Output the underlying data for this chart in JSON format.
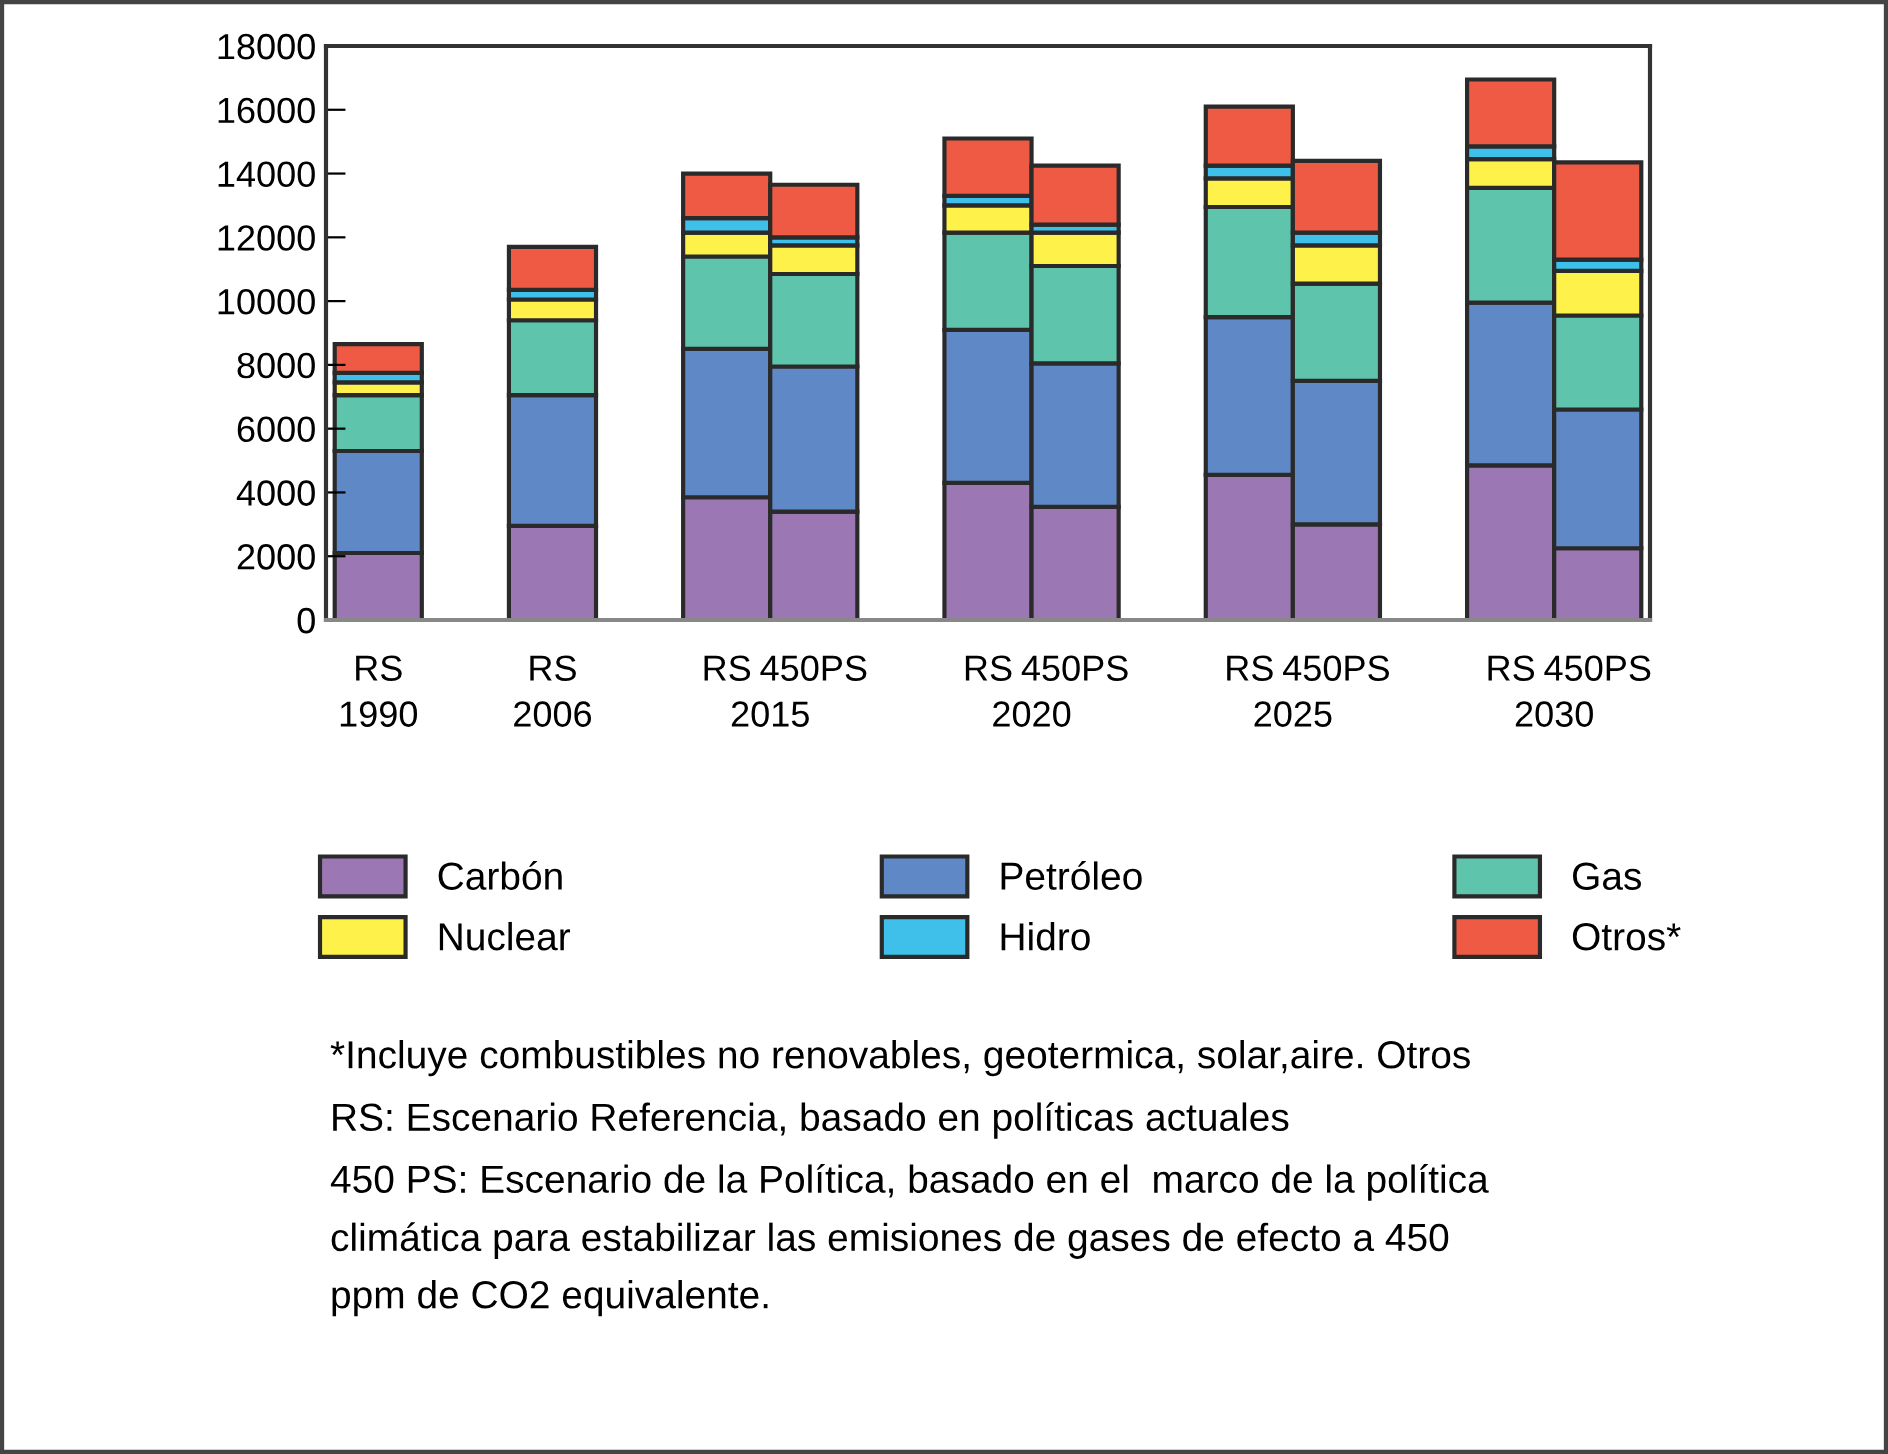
{
  "chart_data": {
    "type": "bar",
    "stacked": true,
    "categories": [
      "RS",
      "RS",
      "RS",
      "450PS",
      "RS",
      "450PS",
      "RS",
      "450PS",
      "RS",
      "450PS"
    ],
    "series": [
      {
        "name": "Carbón",
        "color": "#9b77b3",
        "values": [
          2100,
          2950,
          3850,
          3400,
          4300,
          3550,
          4550,
          3000,
          4850,
          2250
        ]
      },
      {
        "name": "Petróleo",
        "color": "#5f88c6",
        "values": [
          3200,
          4100,
          4650,
          4550,
          4800,
          4500,
          4950,
          4500,
          5100,
          4350
        ]
      },
      {
        "name": "Gas",
        "color": "#5ec4ab",
        "values": [
          1750,
          2350,
          2900,
          2900,
          3050,
          3050,
          3450,
          3050,
          3600,
          2950
        ]
      },
      {
        "name": "Nuclear",
        "color": "#fef14a",
        "values": [
          400,
          650,
          750,
          900,
          850,
          1050,
          900,
          1200,
          900,
          1400
        ]
      },
      {
        "name": "Hidro",
        "color": "#3ec0ea",
        "values": [
          300,
          300,
          450,
          250,
          300,
          250,
          400,
          400,
          400,
          350
        ]
      },
      {
        "name": "Otros*",
        "color": "#ef5a44",
        "values": [
          900,
          1350,
          1400,
          1650,
          1800,
          1850,
          1850,
          2250,
          2100,
          3050
        ]
      }
    ],
    "ylim": [
      0,
      18000
    ],
    "yticks": [
      0,
      2000,
      4000,
      6000,
      8000,
      10000,
      12000,
      14000,
      16000,
      18000
    ],
    "grid": false,
    "legend": "bottom",
    "annotations": [
      "1990",
      "2006",
      "2015",
      "2020",
      "2025",
      "2030",
      "*Incluye combustibles no renovables, geotermica, solar,aire. Otros",
      "RS: Escenario Referencia, basado en políticas actuales",
      "450 PS: Escenario de la Política, basado en el  marco de la política\nclimática para estabilizar las emisiones de gases de efecto a 450\nppm de CO2 equivalente."
    ]
  }
}
